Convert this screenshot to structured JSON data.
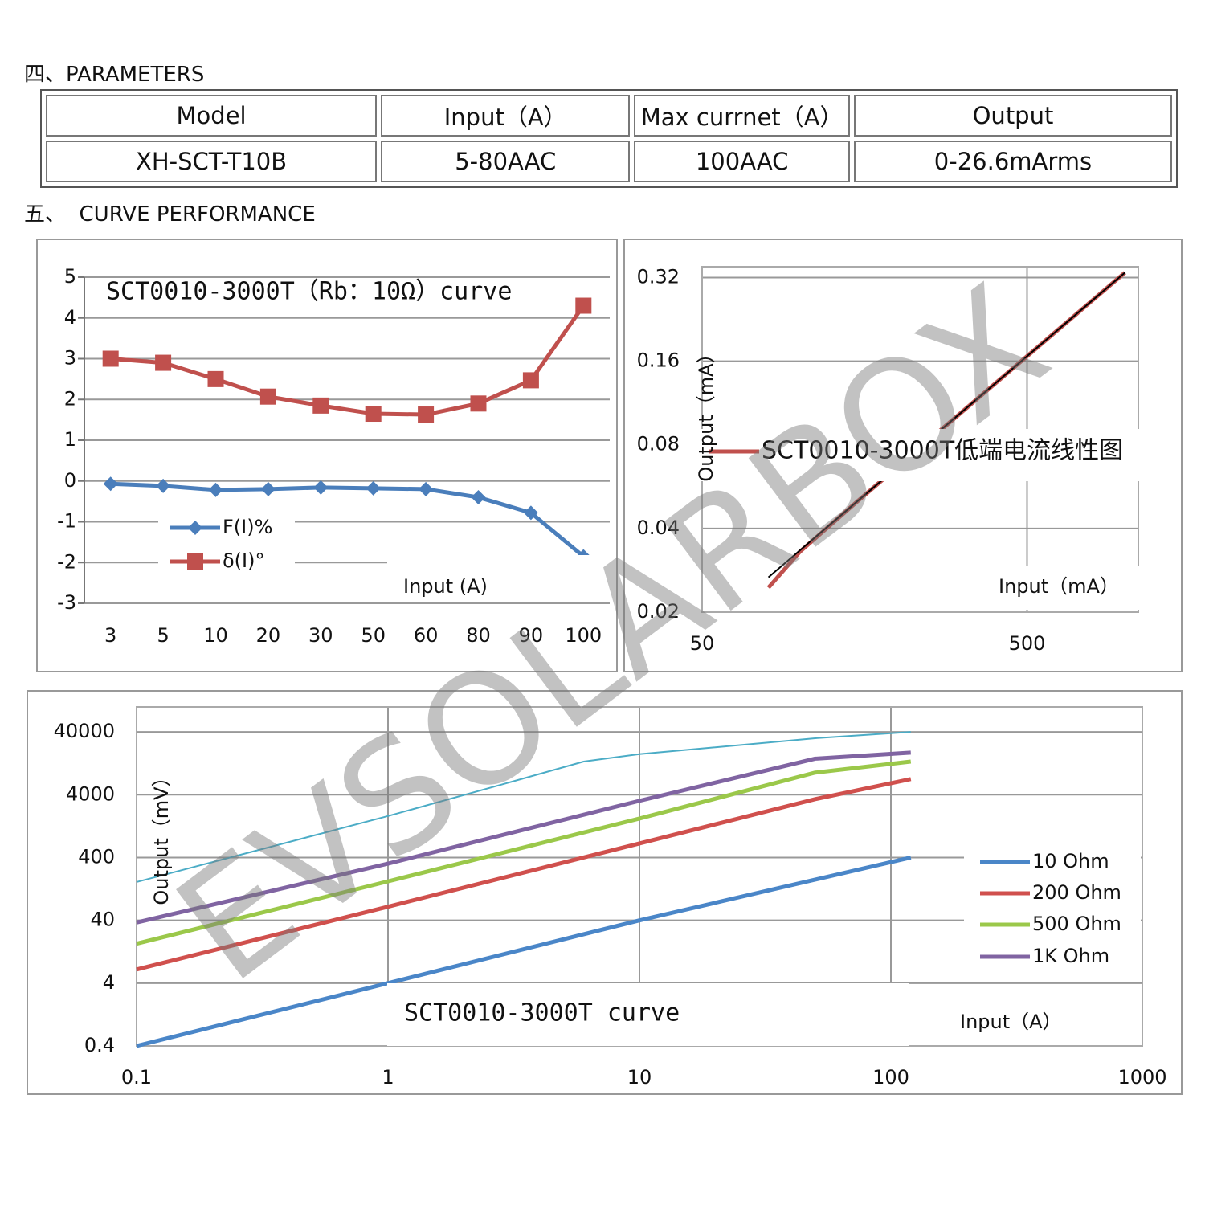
{
  "sections": [
    {
      "heading": "四、PARAMETERS"
    },
    {
      "heading": "五、  CURVE PERFORMANCE"
    }
  ],
  "table": {
    "header": [
      "Model",
      "Input（A）",
      "Max currnet（A）",
      "Output"
    ],
    "rows": [
      [
        "XH-SCT-T10B",
        "5-80AAC",
        "100AAC",
        "0-26.6mArms"
      ]
    ]
  },
  "watermark": "EVSOLARBOX",
  "chart_data": [
    {
      "type": "line",
      "title": "SCT0010-3000T（Rb：10Ω）curve",
      "x_label": "Input (A)",
      "categories": [
        "3",
        "5",
        "10",
        "20",
        "30",
        "50",
        "60",
        "80",
        "90",
        "100"
      ],
      "series": [
        {
          "name": "F(I)%",
          "color": "#4a7ebb",
          "marker": "diamond",
          "values": [
            -0.07,
            -0.12,
            -0.22,
            -0.2,
            -0.16,
            -0.18,
            -0.2,
            -0.4,
            -0.78,
            -1.85
          ]
        },
        {
          "name": "δ(I)°",
          "color": "#c0504d",
          "marker": "square",
          "values": [
            3.0,
            2.9,
            2.5,
            2.07,
            1.85,
            1.65,
            1.63,
            1.9,
            2.47,
            4.3
          ]
        }
      ],
      "ylim": [
        -3,
        5
      ],
      "yticks": [
        -3,
        -2,
        -1,
        0,
        1,
        2,
        3,
        4,
        5
      ],
      "grid": true,
      "legend": "lower-left"
    },
    {
      "type": "line",
      "x_label": "Input（mA）",
      "y_label": "Output（mA）",
      "xscale": "log",
      "yscale": "log",
      "xlim": [
        50,
        1100
      ],
      "xticks": [
        50,
        500
      ],
      "ylim": [
        0.02,
        0.35
      ],
      "yticks": [
        0.02,
        0.04,
        0.08,
        0.16,
        0.32
      ],
      "grid": true,
      "legend": "center",
      "series": [
        {
          "name": "SCT0010-3000T低端电流线性图",
          "color": "#c0504d",
          "x": [
            80,
            100,
            150,
            200,
            300,
            500,
            700,
            1000
          ],
          "values": [
            0.0245,
            0.033,
            0.05,
            0.0667,
            0.1,
            0.1667,
            0.2333,
            0.3333
          ]
        },
        {
          "color": "#000000",
          "x": [
            80,
            1000
          ],
          "values": [
            0.0267,
            0.3333
          ]
        }
      ]
    },
    {
      "type": "line",
      "title": "SCT0010-3000T curve",
      "x_label": "Input（A）",
      "y_label": "Output（mV）",
      "xscale": "log",
      "yscale": "log",
      "xlim": [
        0.1,
        1000
      ],
      "xticks": [
        0.1,
        1,
        10,
        100,
        1000
      ],
      "ylim": [
        0.4,
        100000
      ],
      "yticks": [
        0.4,
        4,
        40,
        400,
        4000,
        40000
      ],
      "grid": true,
      "legend": "right",
      "series": [
        {
          "name": "10 Ohm",
          "color": "#4a86c8",
          "x": [
            0.1,
            1,
            10,
            120
          ],
          "values": [
            0.4,
            4,
            40,
            400
          ]
        },
        {
          "name": "200 Ohm",
          "color": "#d0504d",
          "x": [
            0.1,
            1,
            10,
            50,
            120
          ],
          "values": [
            6.6,
            66,
            670,
            3400,
            7100
          ]
        },
        {
          "name": "500 Ohm",
          "color": "#9bc84a",
          "x": [
            0.1,
            1,
            10,
            50,
            120
          ],
          "values": [
            17,
            167,
            1670,
            9000,
            13500
          ]
        },
        {
          "name": "1K Ohm",
          "color": "#8064a2",
          "x": [
            0.1,
            1,
            10,
            50,
            120
          ],
          "values": [
            37,
            320,
            3200,
            15000,
            18700
          ]
        },
        {
          "color": "#4bacc6",
          "x": [
            0.1,
            1,
            3,
            6,
            10,
            50,
            120
          ],
          "values": [
            163,
            1830,
            6200,
            13500,
            17700,
            31700,
            40000
          ]
        }
      ]
    }
  ]
}
